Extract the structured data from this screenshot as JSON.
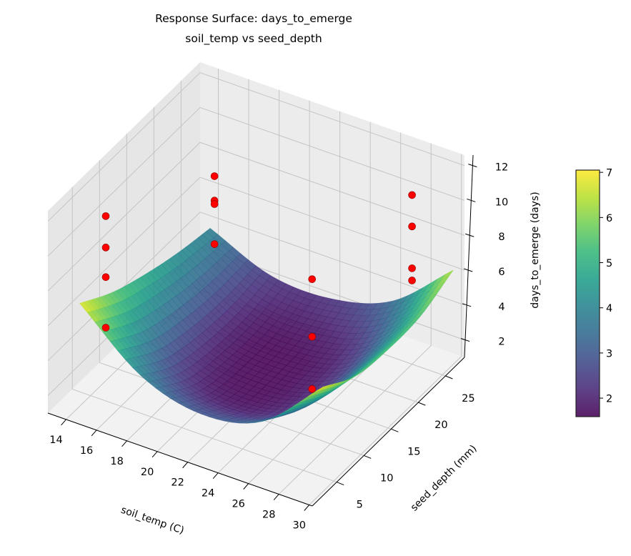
{
  "chart_data": {
    "type": "surface3d",
    "title": "Response Surface: days_to_emerge",
    "subtitle": "soil_temp vs seed_depth",
    "xlabel": "soil_temp (C)",
    "ylabel": "seed_depth (mm)",
    "zlabel": "days_to_emerge (days)",
    "xlim": [
      12.8,
      30.2
    ],
    "ylim": [
      0.5,
      28.5
    ],
    "zlim": [
      1,
      12.6
    ],
    "xticks": [
      "14",
      "16",
      "18",
      "20",
      "22",
      "24",
      "26",
      "28",
      "30"
    ],
    "yticks": [
      "5",
      "10",
      "15",
      "20",
      "25"
    ],
    "zticks": [
      "2",
      "4",
      "6",
      "8",
      "10",
      "12"
    ],
    "grid": true,
    "colormap": "viridis",
    "surface": {
      "x": [
        14,
        18,
        22,
        26,
        30
      ],
      "y": [
        3,
        9,
        15,
        21,
        27
      ],
      "z": [
        [
          6.9,
          4.0,
          3.0,
          3.8,
          7.0
        ],
        [
          5.7,
          2.7,
          1.8,
          2.6,
          5.8
        ],
        [
          4.9,
          2.2,
          1.6,
          2.3,
          5.5
        ],
        [
          4.3,
          2.1,
          1.7,
          2.5,
          5.6
        ],
        [
          3.9,
          2.4,
          2.3,
          3.4,
          6.4
        ]
      ]
    },
    "points": [
      {
        "x": 15,
        "y": 5,
        "z": 11.6
      },
      {
        "x": 15,
        "y": 5,
        "z": 9.8
      },
      {
        "x": 15,
        "y": 5,
        "z": 8.1
      },
      {
        "x": 15,
        "y": 5,
        "z": 5.2
      },
      {
        "x": 15,
        "y": 25,
        "z": 7.8
      },
      {
        "x": 15,
        "y": 25,
        "z": 6.4
      },
      {
        "x": 15,
        "y": 25,
        "z": 6.2
      },
      {
        "x": 15,
        "y": 25,
        "z": 3.9
      },
      {
        "x": 25,
        "y": 15,
        "z": 8.0
      },
      {
        "x": 25,
        "y": 15,
        "z": 4.7
      },
      {
        "x": 25,
        "y": 15,
        "z": 1.7
      },
      {
        "x": 28,
        "y": 25,
        "z": 10.7
      },
      {
        "x": 28,
        "y": 25,
        "z": 8.9
      },
      {
        "x": 28,
        "y": 25,
        "z": 6.5
      },
      {
        "x": 28,
        "y": 25,
        "z": 5.8
      }
    ],
    "point_color": "#ff0000",
    "colorbar": {
      "range": [
        1.59,
        7.05
      ],
      "ticks": [
        "2",
        "3",
        "4",
        "5",
        "6",
        "7"
      ]
    }
  }
}
